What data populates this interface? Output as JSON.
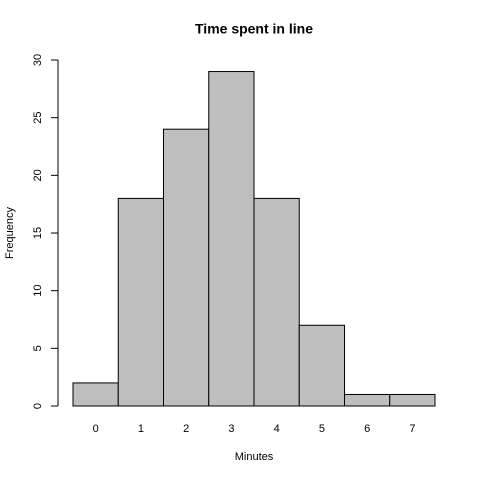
{
  "chart_data": {
    "type": "bar",
    "title": "Time spent in line",
    "x_label": "Minutes",
    "y_label": "Frequency",
    "categories": [
      "0",
      "1",
      "2",
      "3",
      "4",
      "5",
      "6",
      "7"
    ],
    "values": [
      2,
      18,
      24,
      29,
      18,
      7,
      1,
      1
    ],
    "color": "#bebebe",
    "ylim": [
      0,
      30
    ],
    "yticks": [
      0,
      5,
      10,
      15,
      20,
      25,
      30
    ],
    "grid": false
  }
}
